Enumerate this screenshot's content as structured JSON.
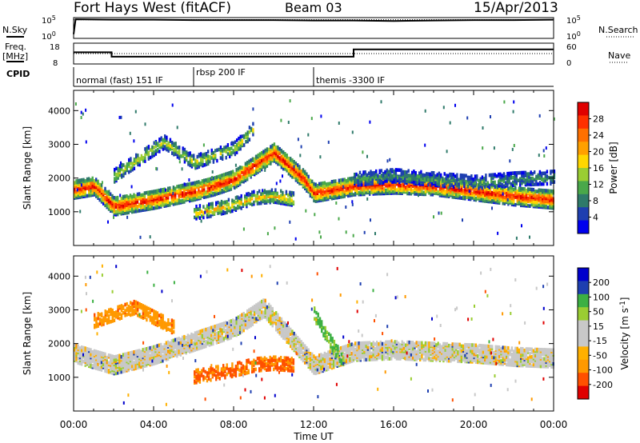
{
  "header": {
    "title": "Fort Hays West (fitACF)",
    "beam": "Beam 03",
    "date": "15/Apr/2013"
  },
  "panel_labels": {
    "nsky": "N.Sky",
    "freq_1": "Freq.",
    "freq_2": "[MHz]",
    "cpid": "CPID",
    "nsearch": "N.Search",
    "nave": "Nave"
  },
  "scan_scales": {
    "nsky_ticks": [
      "10^5",
      "10^0"
    ],
    "nsearch_ticks": [
      "10^5",
      "10^0"
    ],
    "freq_ticks": [
      "18",
      "8"
    ],
    "nave_ticks": [
      "60",
      "0"
    ]
  },
  "cpid_segments": [
    {
      "label": "normal (fast) 151 IF",
      "start_hour": 0,
      "end_hour": 6
    },
    {
      "label": "rbsp 200 IF",
      "start_hour": 6,
      "end_hour": 12
    },
    {
      "label": "themis -3300 IF",
      "start_hour": 12,
      "end_hour": 24
    }
  ],
  "colors": {
    "power_scale": [
      "#0000ee",
      "#1e3fb0",
      "#2f7a6a",
      "#4aa84a",
      "#9acd32",
      "#ffd700",
      "#ffa000",
      "#ff7000",
      "#ff3000",
      "#e00000"
    ],
    "velocity_scale": [
      "#e00000",
      "#ff5000",
      "#ff9900",
      "#ffb000",
      "#c8c8c8",
      "#c8c8c8",
      "#9acd32",
      "#3cb043",
      "#1e3fb0",
      "#0000cc"
    ]
  },
  "chart_data": [
    {
      "type": "line",
      "title": "N.Sky / N.Search",
      "x_unit": "hours UT",
      "series": [
        {
          "name": "N.Sky",
          "x": [
            0,
            0.1,
            2,
            4,
            6,
            8,
            10,
            12,
            14,
            16,
            18,
            20,
            22,
            24
          ],
          "y": [
            1,
            4.6,
            4.5,
            4.5,
            4.4,
            4.4,
            4.4,
            4.3,
            4.3,
            4.2,
            4.3,
            4.4,
            4.4,
            4.5
          ]
        },
        {
          "name": "N.Search",
          "x": [
            0,
            24
          ],
          "y": [
            4.5,
            4.5
          ]
        }
      ]
    },
    {
      "type": "line",
      "title": "Freq. [MHz] / Nave",
      "x_unit": "hours UT",
      "series": [
        {
          "name": "Freq.",
          "x": [
            0,
            1.9,
            1.9,
            14,
            14,
            24
          ],
          "y": [
            13.6,
            13.6,
            11.5,
            11.5,
            15.0,
            15.0
          ]
        },
        {
          "name": "Nave",
          "x": [
            0,
            24
          ],
          "y": [
            30,
            30
          ]
        }
      ]
    },
    {
      "type": "heatmap",
      "quantity": "Power",
      "xlabel": "Time UT",
      "ylabel": "Slant Range [km]",
      "colorbar_label": "Power [dB]",
      "colorbar_ticks": [
        4,
        8,
        12,
        16,
        20,
        24,
        28
      ],
      "ylim": [
        0,
        4600
      ],
      "xlim_hours": [
        0,
        24
      ],
      "features": [
        {
          "name": "main band",
          "x_hours": [
            0,
            1,
            2,
            4,
            6,
            7,
            8,
            9,
            10,
            11.5,
            12,
            14,
            16,
            18,
            20,
            22,
            24
          ],
          "range_km": [
            1700,
            1800,
            1200,
            1400,
            1650,
            1800,
            2000,
            2400,
            2800,
            2000,
            1600,
            1800,
            1850,
            1800,
            1650,
            1500,
            1400
          ],
          "power_db": 28
        },
        {
          "name": "upper band",
          "x_hours": [
            2,
            3,
            4,
            4.5,
            6,
            8,
            9
          ],
          "range_km": [
            2100,
            2500,
            2900,
            3100,
            2500,
            2900,
            3500
          ],
          "power_db": 14
        },
        {
          "name": "lower band",
          "x_hours": [
            6,
            7,
            8,
            9,
            10,
            11
          ],
          "range_km": [
            1000,
            1100,
            1250,
            1450,
            1500,
            1400
          ],
          "power_db": 18
        },
        {
          "name": "evening band",
          "x_hours": [
            14,
            16,
            18,
            20,
            22,
            24
          ],
          "range_km": [
            2000,
            2100,
            2000,
            1900,
            2000,
            2050
          ],
          "power_db": 8
        }
      ]
    },
    {
      "type": "heatmap",
      "quantity": "Velocity",
      "xlabel": "Time UT",
      "ylabel": "Slant Range [km]",
      "colorbar_label": "Velocity [m s^-1]",
      "colorbar_ticks": [
        -200,
        -100,
        -50,
        -15,
        15,
        50,
        100,
        200
      ],
      "ylim": [
        0,
        4600
      ],
      "xlim_hours": [
        0,
        24
      ],
      "features": [
        {
          "name": "ground scatter band",
          "x_hours": [
            0,
            2,
            4,
            6,
            8,
            9.5,
            12,
            14,
            16,
            18,
            20,
            22,
            24
          ],
          "range_km": [
            1750,
            1400,
            1700,
            2100,
            2500,
            3100,
            1400,
            1800,
            1850,
            1800,
            1750,
            1650,
            1600
          ],
          "velocity": 0
        },
        {
          "name": "westward flow",
          "x_hours": [
            1,
            2,
            3,
            4,
            5
          ],
          "range_km": [
            2700,
            2900,
            3100,
            2800,
            2500
          ],
          "velocity": -60
        },
        {
          "name": "strong westward flow",
          "x_hours": [
            6,
            7,
            8,
            9,
            10,
            11
          ],
          "range_km": [
            1050,
            1150,
            1250,
            1400,
            1450,
            1400
          ],
          "velocity": -80
        },
        {
          "name": "eastward flow",
          "x_hours": [
            12,
            12.5,
            13,
            13.5
          ],
          "range_km": [
            2900,
            2400,
            1900,
            1500
          ],
          "velocity": 40
        }
      ]
    }
  ],
  "axes": {
    "range_ticks": [
      "1000",
      "2000",
      "3000",
      "4000"
    ],
    "time_ticks": [
      "00:00",
      "04:00",
      "08:00",
      "12:00",
      "16:00",
      "20:00",
      "00:00"
    ],
    "xlabel": "Time UT",
    "ylabel": "Slant Range [km]"
  }
}
